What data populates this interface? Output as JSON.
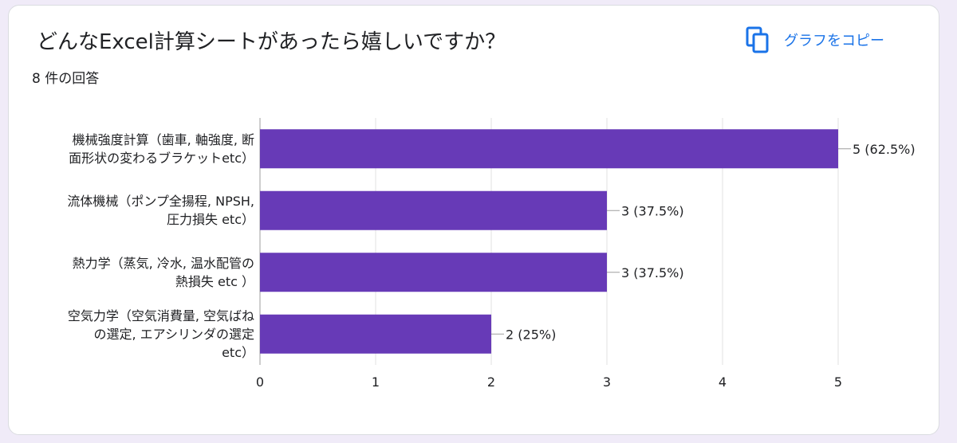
{
  "header": {
    "title": "どんなExcel計算シートがあったら嬉しいですか？",
    "response_count": "8 件の回答",
    "copy_label": "グラフをコピー",
    "copy_icon": "copy-icon"
  },
  "colors": {
    "bar": "#673ab7",
    "accent": "#1a73e8",
    "grid": "#e0e0e0",
    "background": "#f0ebf8"
  },
  "chart_data": {
    "type": "bar",
    "orientation": "horizontal",
    "categories": [
      "機械強度計算（歯車, 軸強度, 断面形状の変わるブラケットetc）",
      "流体機械（ポンプ全揚程, NPSH, 圧力損失 etc）",
      "熱力学（蒸気, 冷水, 温水配管の熱損失 etc ）",
      "空気力学（空気消費量, 空気ばねの選定, エアシリンダの選定 etc）"
    ],
    "category_lines": [
      [
        "機械強度計算（歯車, 軸強度, 断",
        "面形状の変わるブラケットetc）"
      ],
      [
        "流体機械（ポンプ全揚程, NPSH,",
        "圧力損失 etc）"
      ],
      [
        "熱力学（蒸気, 冷水, 温水配管の",
        "熱損失 etc ）"
      ],
      [
        "空気力学（空気消費量, 空気ばね",
        "の選定, エアシリンダの選定",
        "etc）"
      ]
    ],
    "values": [
      5,
      3,
      3,
      2
    ],
    "data_labels": [
      "5 (62.5%)",
      "3 (37.5%)",
      "3 (37.5%)",
      "2 (25%)"
    ],
    "x_ticks": [
      "0",
      "1",
      "2",
      "3",
      "4",
      "5"
    ],
    "xlim": [
      0,
      5
    ],
    "grid": true,
    "legend": "none"
  }
}
